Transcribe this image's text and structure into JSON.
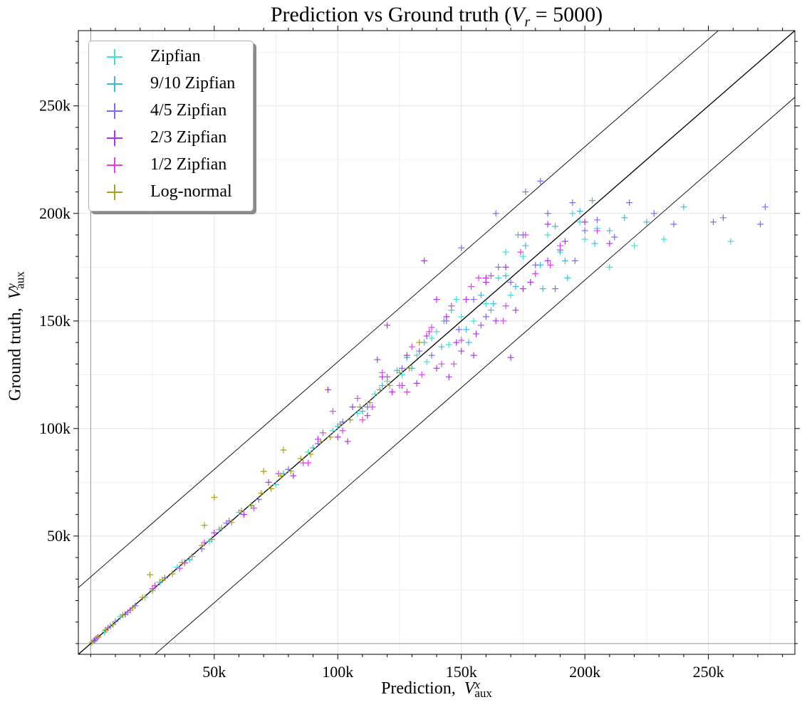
{
  "chart_data": {
    "type": "scatter",
    "title_main": "Prediction vs Ground truth (",
    "title_var": "V",
    "title_sub": "r",
    "title_tail": " = 5000)",
    "xlabel": "Prediction,",
    "xlabel_var": "V",
    "xlabel_sup": "x",
    "xlabel_sub": "aux",
    "ylabel": "Ground truth,",
    "ylabel_var": "V",
    "ylabel_sup": "y",
    "ylabel_sub": "aux",
    "xlim": [
      -5000,
      285000
    ],
    "ylim": [
      -5000,
      285000
    ],
    "x_ticks": [
      50000,
      100000,
      150000,
      200000,
      250000
    ],
    "x_tick_labels": [
      "50k",
      "100k",
      "150k",
      "200k",
      "250k"
    ],
    "y_ticks": [
      50000,
      100000,
      150000,
      200000,
      250000
    ],
    "y_tick_labels": [
      "50k",
      "100k",
      "150k",
      "200k",
      "250k"
    ],
    "grid": true,
    "legend_position": "top-left",
    "reference_lines": [
      {
        "slope": 1,
        "intercept": 0
      },
      {
        "slope": 1,
        "intercept": 31000
      },
      {
        "slope": 1,
        "intercept": -31000
      }
    ],
    "series": [
      {
        "name": "Zipfian",
        "color": "#40e0d0",
        "x": [
          1200,
          5500,
          12000,
          22000,
          35000,
          48000,
          60000,
          75000,
          88000,
          98000,
          108000,
          115000,
          120000,
          126000,
          132000,
          136000,
          140000,
          145000,
          150000,
          155000,
          160000,
          165000,
          170000,
          175000,
          180000,
          185000,
          190000,
          195000,
          200000,
          205000,
          210000,
          220000,
          232000,
          259000,
          138000,
          148000,
          158000,
          168000,
          178000,
          198000
        ],
        "y": [
          1300,
          5400,
          12500,
          21500,
          35500,
          47500,
          61000,
          74000,
          89000,
          99000,
          107000,
          116000,
          122000,
          125000,
          134000,
          131000,
          145000,
          139000,
          152000,
          150000,
          158000,
          170000,
          162000,
          180000,
          172000,
          190000,
          182000,
          200000,
          188000,
          193000,
          175000,
          185000,
          188000,
          187000,
          142000,
          160000,
          148000,
          182000,
          168000,
          196000
        ]
      },
      {
        "name": "9/10 Zipfian",
        "color": "#3fb8d8",
        "x": [
          2000,
          8000,
          15000,
          28000,
          40000,
          52000,
          65000,
          78000,
          90000,
          100000,
          110000,
          118000,
          124000,
          130000,
          135000,
          142000,
          146000,
          152000,
          158000,
          162000,
          168000,
          172000,
          176000,
          182000,
          188000,
          192000,
          198000,
          204000,
          210000,
          216000,
          225000,
          240000,
          128000,
          143000,
          153000,
          163000,
          173000,
          183000,
          193000,
          203000
        ],
        "y": [
          2100,
          8100,
          14500,
          28500,
          39000,
          53000,
          64000,
          79000,
          91000,
          101000,
          108000,
          120000,
          127000,
          128000,
          140000,
          138000,
          155000,
          146000,
          162000,
          155000,
          171000,
          166000,
          185000,
          176000,
          194000,
          178000,
          201000,
          186000,
          192000,
          198000,
          196000,
          203000,
          133000,
          150000,
          140000,
          158000,
          190000,
          165000,
          170000,
          206000
        ]
      },
      {
        "name": "4/5 Zipfian",
        "color": "#7a6cf0",
        "x": [
          3000,
          10000,
          18000,
          30000,
          45000,
          55000,
          68000,
          80000,
          92000,
          102000,
          112000,
          120000,
          126000,
          133000,
          138000,
          144000,
          149000,
          155000,
          160000,
          165000,
          170000,
          175000,
          180000,
          185000,
          190000,
          195000,
          200000,
          205000,
          212000,
          218000,
          228000,
          236000,
          252000,
          256000,
          271000,
          273000,
          182000,
          176000,
          150000,
          164000,
          188000,
          196000
        ],
        "y": [
          3100,
          10200,
          17600,
          30500,
          44000,
          56000,
          67000,
          81000,
          93000,
          103000,
          110000,
          124000,
          128000,
          136000,
          134000,
          150000,
          146000,
          160000,
          152000,
          175000,
          168000,
          190000,
          176000,
          200000,
          183000,
          205000,
          192000,
          197000,
          189000,
          205000,
          200000,
          195000,
          196000,
          198000,
          195000,
          203000,
          215000,
          210000,
          184000,
          200000,
          165000,
          178000
        ]
      },
      {
        "name": "2/3 Zipfian",
        "color": "#b030f0",
        "x": [
          1500,
          6000,
          14000,
          25000,
          38000,
          50000,
          62000,
          72000,
          82000,
          92000,
          100000,
          106000,
          112000,
          118000,
          122000,
          128000,
          132000,
          136000,
          140000,
          144000,
          148000,
          152000,
          156000,
          160000,
          164000,
          168000,
          172000,
          178000,
          185000,
          192000,
          200000,
          210000,
          96000,
          104000,
          116000,
          126000,
          140000,
          150000,
          160000,
          170000,
          120000,
          135000,
          145000,
          155000,
          175000,
          185000
        ],
        "y": [
          1400,
          6200,
          13600,
          25500,
          37500,
          51500,
          60000,
          75000,
          78000,
          95000,
          96000,
          110000,
          106000,
          124000,
          117000,
          134000,
          121000,
          143000,
          128000,
          152000,
          140000,
          160000,
          144000,
          170000,
          150000,
          175000,
          155000,
          168000,
          178000,
          187000,
          196000,
          186000,
          118000,
          94000,
          132000,
          120000,
          160000,
          136000,
          168000,
          133000,
          148000,
          178000,
          124000,
          134000,
          165000,
          195000
        ]
      },
      {
        "name": "1/2 Zipfian",
        "color": "#e040f0",
        "x": [
          2500,
          7000,
          16000,
          26000,
          36000,
          46000,
          56000,
          66000,
          76000,
          86000,
          94000,
          102000,
          108000,
          114000,
          120000,
          125000,
          130000,
          134000,
          138000,
          142000,
          146000,
          150000,
          154000,
          158000,
          162000,
          168000,
          174000,
          180000,
          190000,
          205000,
          88000,
          98000,
          110000,
          118000,
          128000,
          137000,
          147000,
          157000,
          167000,
          176000,
          186000
        ],
        "y": [
          2600,
          7300,
          15500,
          27000,
          35000,
          47000,
          57000,
          63000,
          79000,
          84000,
          98000,
          99000,
          114000,
          110000,
          124000,
          120000,
          138000,
          125000,
          147000,
          130000,
          157000,
          141000,
          166000,
          148000,
          171000,
          157000,
          182000,
          172000,
          185000,
          192000,
          84000,
          108000,
          104000,
          126000,
          117000,
          145000,
          130000,
          170000,
          150000,
          190000,
          176000
        ]
      },
      {
        "name": "Log-normal",
        "color": "#a8a020",
        "x": [
          500,
          3000,
          6000,
          9000,
          13000,
          17000,
          21000,
          25000,
          29000,
          33000,
          37000,
          41000,
          45000,
          49000,
          53000,
          57000,
          61000,
          65000,
          69000,
          73000,
          77000,
          81000,
          85000,
          89000,
          93000,
          97000,
          101000,
          105000,
          109000,
          113000,
          117000,
          121000,
          125000,
          129000,
          24000,
          46000,
          50000,
          70000,
          78000,
          133000
        ],
        "y": [
          600,
          3100,
          6300,
          8800,
          13300,
          16600,
          21500,
          24600,
          29600,
          32400,
          37700,
          40500,
          45600,
          48400,
          53700,
          56300,
          61800,
          64200,
          69900,
          72000,
          78000,
          80200,
          86000,
          88000,
          94000,
          96000,
          102000,
          104000,
          110000,
          112000,
          118000,
          120000,
          126000,
          128000,
          32000,
          55000,
          68000,
          80000,
          90000,
          140000
        ]
      }
    ]
  }
}
